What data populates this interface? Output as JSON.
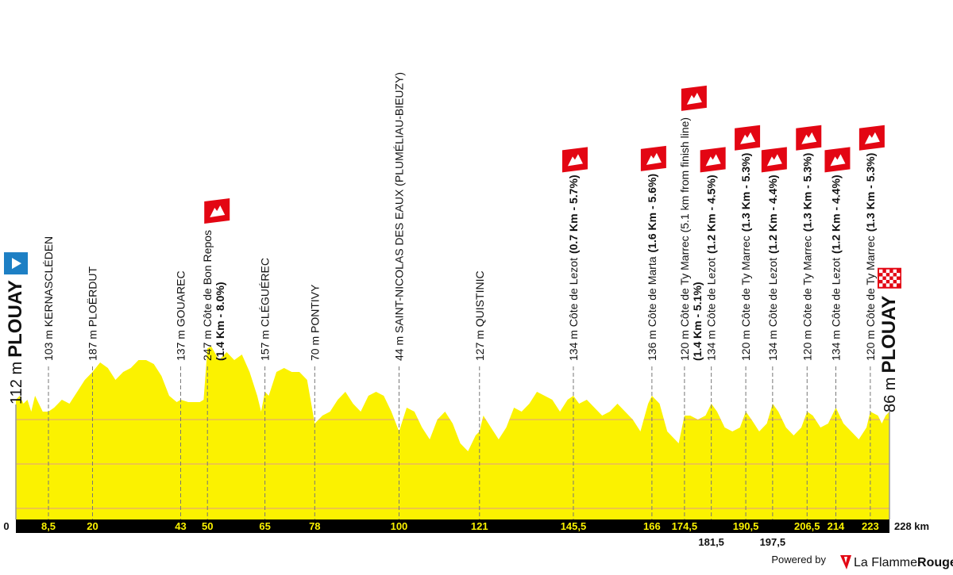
{
  "chart_data": {
    "type": "area",
    "color": "#fbf200",
    "x": [
      0,
      1,
      2,
      3,
      4,
      5,
      7,
      8.5,
      10,
      12,
      14,
      16,
      18,
      20,
      22,
      24,
      26,
      28,
      30,
      32,
      34,
      36,
      38,
      40,
      42,
      43,
      45,
      48,
      49,
      50,
      51,
      53,
      55,
      57,
      59,
      61,
      63,
      64,
      65,
      66,
      68,
      70,
      72,
      74,
      76,
      78,
      80,
      82,
      84,
      86,
      88,
      90,
      92,
      94,
      96,
      98,
      100,
      102,
      104,
      106,
      108,
      110,
      112,
      114,
      116,
      118,
      120,
      121,
      122,
      124,
      126,
      128,
      130,
      132,
      134,
      136,
      138,
      140,
      142,
      144,
      145.5,
      147,
      149,
      151,
      153,
      155,
      157,
      159,
      161,
      163,
      165,
      166,
      168,
      170,
      172,
      173,
      174.5,
      176,
      178,
      180,
      181.5,
      183,
      185,
      187,
      189,
      190.5,
      192,
      194,
      196,
      197.5,
      199,
      201,
      203,
      205,
      206.5,
      208,
      210,
      212,
      214,
      216,
      218,
      220,
      222,
      223,
      225,
      226,
      227,
      228
    ],
    "values": [
      112,
      122,
      102,
      112,
      82,
      122,
      82,
      82,
      92,
      112,
      102,
      132,
      162,
      182,
      206,
      192,
      162,
      182,
      192,
      212,
      212,
      202,
      172,
      122,
      106,
      112,
      106,
      106,
      112,
      242,
      246,
      212,
      232,
      212,
      226,
      182,
      122,
      82,
      132,
      122,
      182,
      192,
      182,
      182,
      162,
      52,
      72,
      82,
      112,
      132,
      102,
      82,
      122,
      132,
      122,
      82,
      32,
      92,
      82,
      42,
      12,
      62,
      82,
      52,
      2,
      -18,
      22,
      32,
      72,
      42,
      12,
      42,
      92,
      82,
      102,
      132,
      122,
      112,
      82,
      112,
      122,
      102,
      112,
      92,
      72,
      82,
      102,
      82,
      62,
      32,
      102,
      122,
      102,
      32,
      12,
      2,
      72,
      72,
      62,
      72,
      102,
      82,
      42,
      32,
      42,
      82,
      62,
      32,
      52,
      102,
      82,
      42,
      22,
      42,
      82,
      72,
      42,
      52,
      92,
      52,
      32,
      12,
      42,
      82,
      72,
      52,
      72,
      82
    ],
    "xlim": [
      0,
      228
    ],
    "ylim": [
      -190,
      280
    ],
    "xticks": [
      0,
      {
        "value": 8.5,
        "label": "8,5"
      },
      20,
      43,
      50,
      65,
      78,
      100,
      121,
      {
        "value": 145.5,
        "label": "145,5"
      },
      166,
      {
        "value": 174.5,
        "label": "174,5"
      },
      {
        "value": 181.5,
        "label": "181,5"
      },
      {
        "value": 190.5,
        "label": "190,5"
      },
      {
        "value": 197.5,
        "label": "197,5"
      },
      {
        "value": 206.5,
        "label": "206,5"
      },
      214,
      223,
      {
        "value": 228,
        "label": "228 km"
      }
    ],
    "waypoints": [
      {
        "text": "112 m",
        "bold": "PLOUAY",
        "marker": "start"
      },
      {
        "text": "103 m KERNASCLÉDEN"
      },
      {
        "text": "187 m PLOËRDUT"
      },
      {
        "text": "137 m GOUAREC"
      },
      {
        "text": "247 m Côte de Bon Repos",
        "line2": "(1.4 Km - 8.0%)",
        "marker": "climb"
      },
      {
        "text": "157 m CLÉGUÉREC"
      },
      {
        "text": "70 m PONTIVY"
      },
      {
        "text": "44 m SAINT-NICOLAS DES EAUX (PLUMÉLIAU-BIEUZY)"
      },
      {
        "text": "127 m QUISTINIC"
      },
      {
        "text": "134 m Côte de Lezot",
        "bold": "(0.7 Km - 5.7%)",
        "marker": "climb"
      },
      {
        "text": "136 m Côte de Marta",
        "bold": "(1.6 Km - 5.6%)",
        "marker": "climb"
      },
      {
        "text": "120 m Côte de Ty Marrec (5.1 km from finish line)",
        "line2": "(1.4 Km - 5.1%)",
        "marker": "climb"
      },
      {
        "text": "134 m Côte de Lezot",
        "bold": "(1.2 Km - 4.5%)",
        "marker": "climb"
      },
      {
        "text": "120 m Côte de Ty Marrec",
        "bold": "(1.3 Km - 5.3%)",
        "marker": "climb"
      },
      {
        "text": "134 m Côte de Lezot",
        "bold": "(1.2 Km - 4.4%)",
        "marker": "climb"
      },
      {
        "text": "120 m Côte de Ty Marrec",
        "bold": "(1.3 Km - 5.3%)",
        "marker": "climb"
      },
      {
        "text": "134 m Côte de Lezot",
        "bold": "(1.2 Km - 4.4%)",
        "marker": "climb"
      },
      {
        "text": "120 m Côte de Ty Marrec",
        "bold": "(1.3 Km - 5.3%)",
        "marker": "climb"
      },
      {
        "text": "86 m",
        "bold": "PLOUAY",
        "marker": "finish"
      }
    ]
  },
  "footer": {
    "powered": "Powered by",
    "brand_a": "La Flamme",
    "brand_b": "Rouge"
  }
}
